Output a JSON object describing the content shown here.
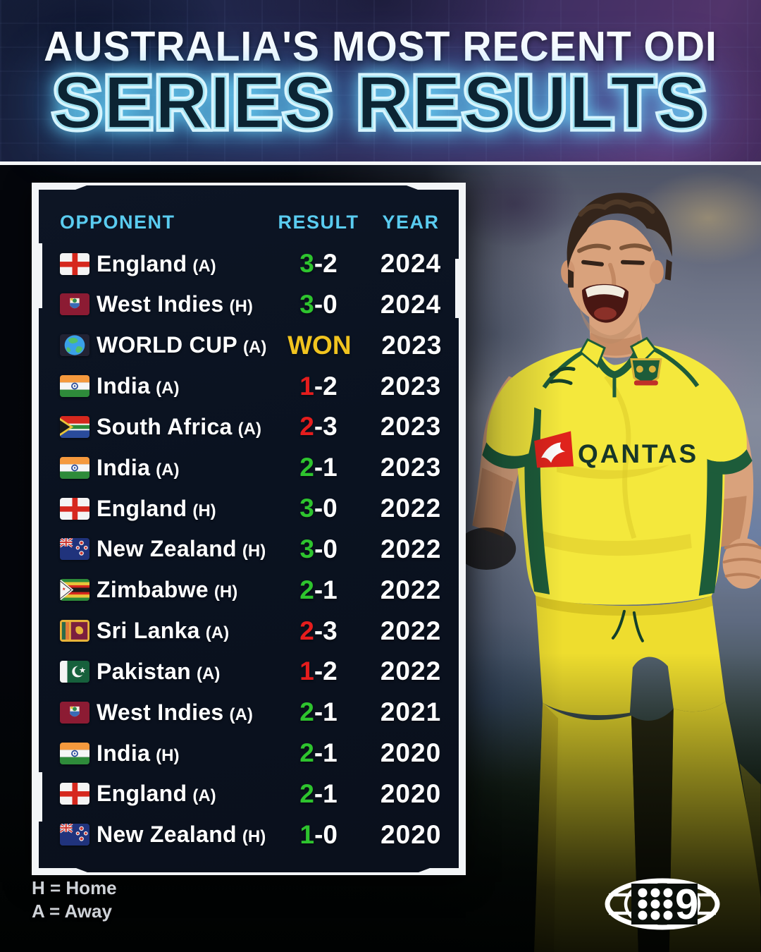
{
  "header": {
    "title_line1": "AUSTRALIA'S MOST RECENT ODI",
    "title_line2": "SERIES RESULTS"
  },
  "table": {
    "columns": [
      "OPPONENT",
      "RESULT",
      "YEAR"
    ],
    "rows": [
      {
        "flag": "england",
        "opponent": "England",
        "venue": "(A)",
        "result_first": "3",
        "result_rest": "-2",
        "result_type": "win",
        "year": "2024"
      },
      {
        "flag": "west-indies",
        "opponent": "West Indies",
        "venue": "(H)",
        "result_first": "3",
        "result_rest": "-0",
        "result_type": "win",
        "year": "2024"
      },
      {
        "flag": "world",
        "opponent": "WORLD CUP",
        "venue": "(A)",
        "result_first": "WON",
        "result_rest": "",
        "result_type": "trophy",
        "year": "2023"
      },
      {
        "flag": "india",
        "opponent": "India",
        "venue": "(A)",
        "result_first": "1",
        "result_rest": "-2",
        "result_type": "loss",
        "year": "2023"
      },
      {
        "flag": "south-africa",
        "opponent": "South Africa",
        "venue": "(A)",
        "result_first": "2",
        "result_rest": "-3",
        "result_type": "loss",
        "year": "2023"
      },
      {
        "flag": "india",
        "opponent": "India",
        "venue": "(A)",
        "result_first": "2",
        "result_rest": "-1",
        "result_type": "win",
        "year": "2023"
      },
      {
        "flag": "england",
        "opponent": "England",
        "venue": "(H)",
        "result_first": "3",
        "result_rest": "-0",
        "result_type": "win",
        "year": "2022"
      },
      {
        "flag": "new-zealand",
        "opponent": "New Zealand",
        "venue": "(H)",
        "result_first": "3",
        "result_rest": "-0",
        "result_type": "win",
        "year": "2022"
      },
      {
        "flag": "zimbabwe",
        "opponent": "Zimbabwe",
        "venue": "(H)",
        "result_first": "2",
        "result_rest": "-1",
        "result_type": "win",
        "year": "2022"
      },
      {
        "flag": "sri-lanka",
        "opponent": "Sri Lanka",
        "venue": "(A)",
        "result_first": "2",
        "result_rest": "-3",
        "result_type": "loss",
        "year": "2022"
      },
      {
        "flag": "pakistan",
        "opponent": "Pakistan",
        "venue": "(A)",
        "result_first": "1",
        "result_rest": "-2",
        "result_type": "loss",
        "year": "2022"
      },
      {
        "flag": "west-indies",
        "opponent": "West Indies",
        "venue": "(A)",
        "result_first": "2",
        "result_rest": "-1",
        "result_type": "win",
        "year": "2021"
      },
      {
        "flag": "india",
        "opponent": "India",
        "venue": "(H)",
        "result_first": "2",
        "result_rest": "-1",
        "result_type": "win",
        "year": "2020"
      },
      {
        "flag": "england",
        "opponent": "England",
        "venue": "(A)",
        "result_first": "2",
        "result_rest": "-1",
        "result_type": "win",
        "year": "2020"
      },
      {
        "flag": "new-zealand",
        "opponent": "New Zealand",
        "venue": "(H)",
        "result_first": "1",
        "result_rest": "-0",
        "result_type": "win",
        "year": "2020"
      }
    ]
  },
  "legend": {
    "line1": "H = Home",
    "line2": "A = Away"
  },
  "branding": {
    "logo": "nine-network",
    "numeral": "9"
  },
  "colors": {
    "win": "#2ec42e",
    "loss": "#e51d1d",
    "trophy": "#f1c41f",
    "header_accent": "#5accf0",
    "row_text": "#ffffff"
  },
  "chart_data": {
    "type": "table",
    "title": "AUSTRALIA'S MOST RECENT ODI SERIES RESULTS",
    "columns": [
      "OPPONENT",
      "RESULT",
      "YEAR"
    ],
    "rows": [
      [
        "England (A)",
        "3-2",
        "2024"
      ],
      [
        "West Indies (H)",
        "3-0",
        "2024"
      ],
      [
        "WORLD CUP (A)",
        "WON",
        "2023"
      ],
      [
        "India (A)",
        "1-2",
        "2023"
      ],
      [
        "South Africa (A)",
        "2-3",
        "2023"
      ],
      [
        "India (A)",
        "2-1",
        "2023"
      ],
      [
        "England (H)",
        "3-0",
        "2022"
      ],
      [
        "New Zealand (H)",
        "3-0",
        "2022"
      ],
      [
        "Zimbabwe (H)",
        "2-1",
        "2022"
      ],
      [
        "Sri Lanka (A)",
        "2-3",
        "2022"
      ],
      [
        "Pakistan (A)",
        "1-2",
        "2022"
      ],
      [
        "West Indies (A)",
        "2-1",
        "2021"
      ],
      [
        "India (H)",
        "2-1",
        "2020"
      ],
      [
        "England (A)",
        "2-1",
        "2020"
      ],
      [
        "New Zealand (H)",
        "1-0",
        "2020"
      ]
    ],
    "notes": [
      "H = Home",
      "A = Away"
    ],
    "result_colors": {
      "first_number_win": "green",
      "first_number_loss": "red",
      "world_cup": "gold"
    }
  }
}
